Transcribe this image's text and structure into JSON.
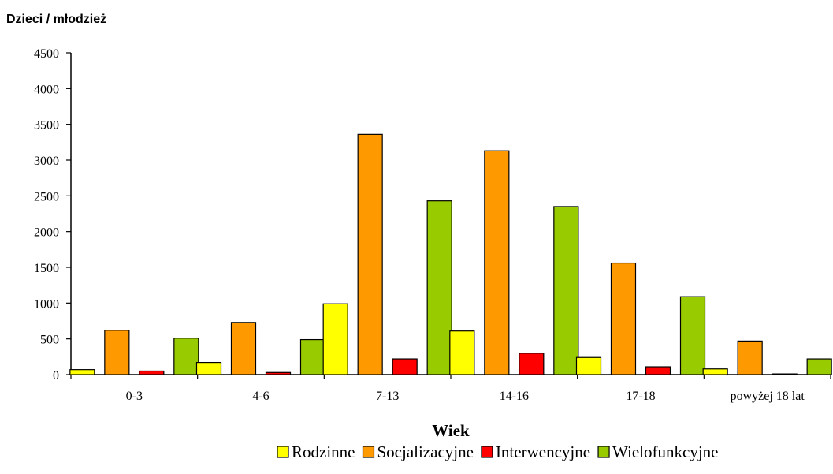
{
  "chart_data": {
    "type": "bar",
    "ylabel": "Dzieci / młodzież",
    "xlabel": "Wiek",
    "categories": [
      "0-3",
      "4-6",
      "7-13",
      "14-16",
      "17-18",
      "powyżej 18 lat"
    ],
    "series": [
      {
        "name": "Rodzinne",
        "color": "#FFFF00",
        "values": [
          70,
          170,
          990,
          610,
          240,
          80
        ]
      },
      {
        "name": "Socjalizacyjne",
        "color": "#FF9900",
        "values": [
          620,
          730,
          3360,
          3130,
          1560,
          470
        ]
      },
      {
        "name": "Interwencyjne",
        "color": "#FF0000",
        "values": [
          50,
          30,
          220,
          300,
          110,
          10
        ]
      },
      {
        "name": "Wielofunkcyjne",
        "color": "#99CC00",
        "values": [
          510,
          490,
          2430,
          2350,
          1090,
          220
        ]
      }
    ],
    "ylim": [
      0,
      4500
    ],
    "yticks": [
      0,
      500,
      1000,
      1500,
      2000,
      2500,
      3000,
      3500,
      4000,
      4500
    ],
    "grid": false,
    "legend": "bottom"
  }
}
